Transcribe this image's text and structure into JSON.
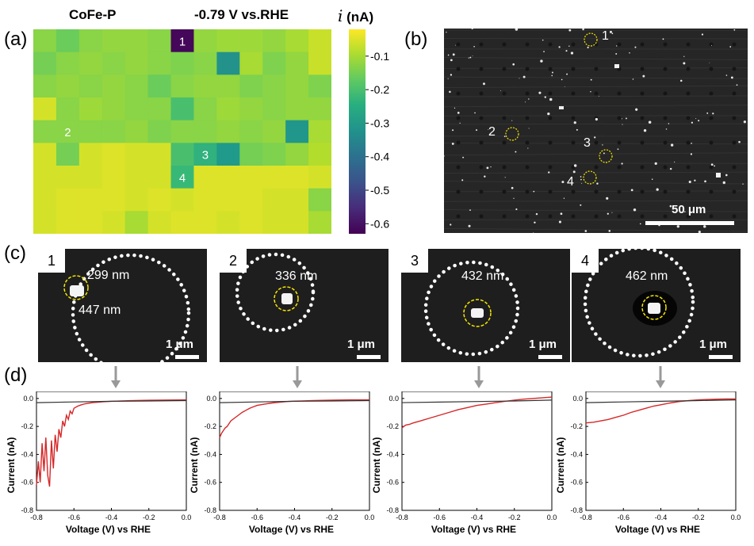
{
  "panels": {
    "a": "(a)",
    "b": "(b)",
    "c": "(c)",
    "d": "(d)"
  },
  "heatmap": {
    "title_left": "CoFe-P",
    "title_right": "-0.79 V vs.RHE",
    "colorbar_label_symbol": "i",
    "colorbar_label_unit": "(nA)",
    "colorbar_ticks": [
      "-0.1",
      "-0.2",
      "-0.3",
      "-0.4",
      "-0.5",
      "-0.6"
    ],
    "colorbar_tick_values": [
      -0.1,
      -0.2,
      -0.3,
      -0.4,
      -0.5,
      -0.6
    ],
    "colorbar_range": [
      -0.63,
      -0.02
    ],
    "annotations": [
      "1",
      "2",
      "3",
      "4"
    ],
    "grid": [
      [
        -0.13,
        -0.16,
        -0.13,
        -0.12,
        -0.12,
        -0.13,
        -0.62,
        -0.12,
        -0.11,
        -0.11,
        -0.12,
        -0.1,
        -0.07
      ],
      [
        -0.15,
        -0.13,
        -0.12,
        -0.13,
        -0.12,
        -0.13,
        -0.14,
        -0.13,
        -0.32,
        -0.1,
        -0.14,
        -0.12,
        -0.07
      ],
      [
        -0.13,
        -0.12,
        -0.13,
        -0.12,
        -0.13,
        -0.16,
        -0.13,
        -0.12,
        -0.12,
        -0.14,
        -0.13,
        -0.12,
        -0.14
      ],
      [
        -0.06,
        -0.13,
        -0.11,
        -0.12,
        -0.13,
        -0.13,
        -0.2,
        -0.13,
        -0.11,
        -0.12,
        -0.13,
        -0.12,
        -0.12
      ],
      [
        -0.13,
        -0.13,
        -0.13,
        -0.13,
        -0.12,
        -0.14,
        -0.13,
        -0.13,
        -0.12,
        -0.13,
        -0.12,
        -0.31,
        -0.1
      ],
      [
        -0.06,
        -0.15,
        -0.06,
        -0.05,
        -0.06,
        -0.06,
        -0.2,
        -0.24,
        -0.3,
        -0.15,
        -0.14,
        -0.12,
        -0.09
      ],
      [
        -0.06,
        -0.06,
        -0.06,
        -0.05,
        -0.06,
        -0.06,
        -0.22,
        -0.05,
        -0.05,
        -0.05,
        -0.05,
        -0.05,
        -0.06
      ],
      [
        -0.06,
        -0.05,
        -0.05,
        -0.05,
        -0.06,
        -0.05,
        -0.06,
        -0.05,
        -0.05,
        -0.05,
        -0.06,
        -0.06,
        -0.13
      ],
      [
        -0.06,
        -0.05,
        -0.05,
        -0.06,
        -0.1,
        -0.06,
        -0.05,
        -0.05,
        -0.06,
        -0.05,
        -0.06,
        -0.06,
        -0.1
      ]
    ]
  },
  "sem_overview": {
    "labels": [
      "1",
      "2",
      "3",
      "4"
    ],
    "scale": "50 μm"
  },
  "zoom_images": [
    {
      "num": "1",
      "labels": [
        "299 nm",
        "447 nm"
      ],
      "scale": "1 μm"
    },
    {
      "num": "2",
      "labels": [
        "336 nm"
      ],
      "scale": "1 μm"
    },
    {
      "num": "3",
      "labels": [
        "432 nm"
      ],
      "scale": "1 μm"
    },
    {
      "num": "4",
      "labels": [
        "462 nm"
      ],
      "scale": "1 μm"
    }
  ],
  "chart_data": [
    {
      "type": "line",
      "xlabel": "Voltage (V) vs RHE",
      "ylabel": "Current (nA)",
      "xlim": [
        -0.8,
        0.0
      ],
      "ylim": [
        -0.8,
        0.05
      ],
      "xticks": [
        "-0.8",
        "-0.6",
        "-0.4",
        "-0.2",
        "0.0"
      ],
      "yticks": [
        "0.0",
        "-0.2",
        "-0.4",
        "-0.6",
        "-0.8"
      ],
      "series": [
        {
          "name": "red",
          "color": "#d62728",
          "x": [
            -0.8,
            -0.79,
            -0.78,
            -0.77,
            -0.76,
            -0.75,
            -0.74,
            -0.73,
            -0.72,
            -0.71,
            -0.7,
            -0.69,
            -0.68,
            -0.67,
            -0.66,
            -0.65,
            -0.64,
            -0.63,
            -0.62,
            -0.61,
            -0.6,
            -0.58,
            -0.56,
            -0.54,
            -0.5,
            -0.45,
            -0.4,
            -0.3,
            -0.2,
            -0.1,
            0.0
          ],
          "y": [
            -0.62,
            -0.45,
            -0.6,
            -0.32,
            -0.52,
            -0.28,
            -0.55,
            -0.63,
            -0.3,
            -0.5,
            -0.26,
            -0.38,
            -0.22,
            -0.28,
            -0.16,
            -0.2,
            -0.12,
            -0.15,
            -0.09,
            -0.11,
            -0.07,
            -0.055,
            -0.045,
            -0.038,
            -0.03,
            -0.024,
            -0.02,
            -0.016,
            -0.013,
            -0.011,
            -0.01
          ]
        },
        {
          "name": "black",
          "color": "#333333",
          "x": [
            -0.8,
            -0.6,
            -0.4,
            -0.2,
            0.0
          ],
          "y": [
            -0.03,
            -0.025,
            -0.02,
            -0.018,
            -0.015
          ]
        }
      ]
    },
    {
      "type": "line",
      "xlabel": "Voltage (V) vs RHE",
      "ylabel": "Current (nA)",
      "xlim": [
        -0.8,
        0.0
      ],
      "ylim": [
        -0.8,
        0.05
      ],
      "xticks": [
        "-0.8",
        "-0.6",
        "-0.4",
        "-0.2",
        "0.0"
      ],
      "yticks": [
        "0.0",
        "-0.2",
        "-0.4",
        "-0.6",
        "-0.8"
      ],
      "series": [
        {
          "name": "red",
          "color": "#d62728",
          "x": [
            -0.8,
            -0.79,
            -0.78,
            -0.77,
            -0.76,
            -0.75,
            -0.74,
            -0.72,
            -0.7,
            -0.68,
            -0.66,
            -0.64,
            -0.62,
            -0.6,
            -0.56,
            -0.52,
            -0.48,
            -0.44,
            -0.4,
            -0.3,
            -0.2,
            -0.1,
            0.0
          ],
          "y": [
            -0.28,
            -0.25,
            -0.23,
            -0.21,
            -0.2,
            -0.18,
            -0.16,
            -0.14,
            -0.12,
            -0.1,
            -0.085,
            -0.07,
            -0.06,
            -0.05,
            -0.04,
            -0.032,
            -0.027,
            -0.022,
            -0.019,
            -0.015,
            -0.012,
            -0.01,
            -0.01
          ]
        },
        {
          "name": "black",
          "color": "#333333",
          "x": [
            -0.8,
            -0.6,
            -0.4,
            -0.2,
            0.0
          ],
          "y": [
            -0.03,
            -0.025,
            -0.02,
            -0.018,
            -0.015
          ]
        }
      ]
    },
    {
      "type": "line",
      "xlabel": "Voltage (V) vs RHE",
      "ylabel": "Current (nA)",
      "xlim": [
        -0.8,
        0.0
      ],
      "ylim": [
        -0.8,
        0.05
      ],
      "xticks": [
        "-0.8",
        "-0.6",
        "-0.4",
        "-0.2",
        "0.0"
      ],
      "yticks": [
        "0.0",
        "-0.2",
        "-0.4",
        "-0.6",
        "-0.8"
      ],
      "series": [
        {
          "name": "red",
          "color": "#d62728",
          "x": [
            -0.8,
            -0.78,
            -0.76,
            -0.74,
            -0.7,
            -0.65,
            -0.6,
            -0.55,
            -0.5,
            -0.45,
            -0.4,
            -0.35,
            -0.3,
            -0.25,
            -0.2,
            -0.15,
            -0.1,
            -0.05,
            0.0
          ],
          "y": [
            -0.21,
            -0.19,
            -0.185,
            -0.175,
            -0.16,
            -0.14,
            -0.12,
            -0.1,
            -0.08,
            -0.065,
            -0.05,
            -0.04,
            -0.03,
            -0.02,
            -0.012,
            -0.005,
            0.0,
            0.005,
            0.01
          ]
        },
        {
          "name": "black",
          "color": "#333333",
          "x": [
            -0.8,
            -0.6,
            -0.4,
            -0.2,
            0.0
          ],
          "y": [
            -0.03,
            -0.026,
            -0.022,
            -0.018,
            -0.012
          ]
        }
      ]
    },
    {
      "type": "line",
      "xlabel": "Voltage (V) vs RHE",
      "ylabel": "Current (nA)",
      "xlim": [
        -0.8,
        0.0
      ],
      "ylim": [
        -0.8,
        0.05
      ],
      "xticks": [
        "-0.8",
        "-0.6",
        "-0.4",
        "-0.2",
        "0.0"
      ],
      "yticks": [
        "0.0",
        "-0.2",
        "-0.4",
        "-0.6",
        "-0.8"
      ],
      "series": [
        {
          "name": "red",
          "color": "#d62728",
          "x": [
            -0.8,
            -0.76,
            -0.72,
            -0.68,
            -0.64,
            -0.6,
            -0.56,
            -0.52,
            -0.48,
            -0.44,
            -0.4,
            -0.35,
            -0.3,
            -0.25,
            -0.2,
            -0.15,
            -0.1,
            -0.05,
            0.0
          ],
          "y": [
            -0.175,
            -0.17,
            -0.16,
            -0.15,
            -0.135,
            -0.12,
            -0.1,
            -0.085,
            -0.07,
            -0.055,
            -0.045,
            -0.032,
            -0.022,
            -0.015,
            -0.01,
            -0.007,
            -0.005,
            -0.004,
            -0.004
          ]
        },
        {
          "name": "black",
          "color": "#333333",
          "x": [
            -0.8,
            -0.6,
            -0.4,
            -0.2,
            0.0
          ],
          "y": [
            -0.03,
            -0.025,
            -0.02,
            -0.015,
            -0.01
          ]
        }
      ]
    }
  ]
}
